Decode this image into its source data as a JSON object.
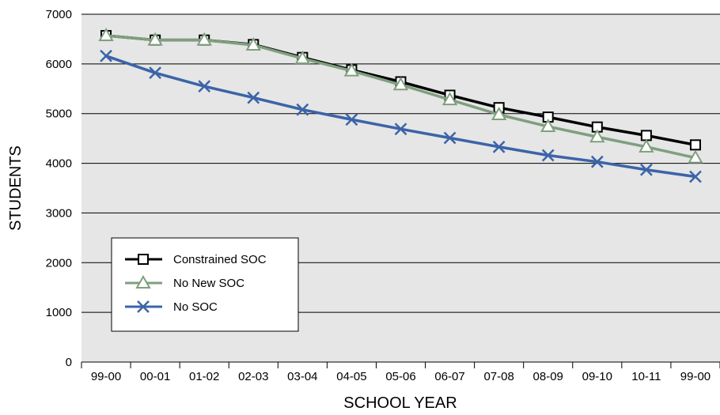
{
  "chart_data": {
    "type": "line",
    "title": "",
    "xlabel": "SCHOOL YEAR",
    "ylabel": "STUDENTS",
    "ylim": [
      0,
      7000
    ],
    "yticks": [
      "0",
      "1000",
      "2000",
      "3000",
      "4000",
      "5000",
      "6000",
      "7000"
    ],
    "categories": [
      "99-00",
      "00-01",
      "01-02",
      "02-03",
      "03-04",
      "04-05",
      "05-06",
      "06-07",
      "07-08",
      "08-09",
      "09-10",
      "10-11",
      "99-00"
    ],
    "grid": "horizontal",
    "legend_position": "bottom-left",
    "series": [
      {
        "name": "Constrained SOC",
        "color": "#000000",
        "marker": "square",
        "values": [
          6570,
          6480,
          6480,
          6390,
          6130,
          5880,
          5640,
          5370,
          5120,
          4930,
          4730,
          4560,
          4370
        ]
      },
      {
        "name": "No New SOC",
        "color": "#7f9f7f",
        "marker": "triangle",
        "values": [
          6570,
          6480,
          6480,
          6380,
          6110,
          5860,
          5580,
          5280,
          4980,
          4740,
          4530,
          4330,
          4110
        ]
      },
      {
        "name": "No SOC",
        "color": "#3b64a8",
        "marker": "x",
        "values": [
          6160,
          5820,
          5550,
          5320,
          5080,
          4880,
          4690,
          4510,
          4330,
          4160,
          4030,
          3870,
          3730
        ]
      }
    ]
  }
}
